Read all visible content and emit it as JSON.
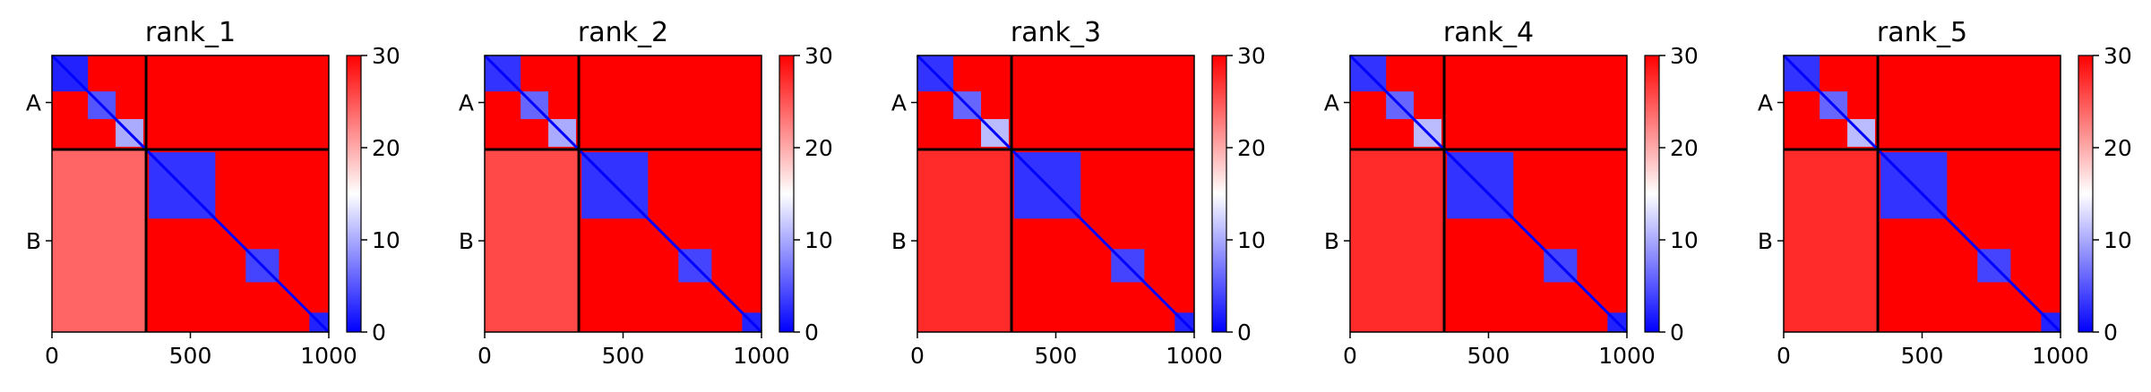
{
  "chart_data": [
    {
      "type": "heatmap",
      "title": "rank_1",
      "xlim": [
        0,
        1000
      ],
      "x_ticks": [
        0,
        500,
        1000
      ],
      "chains": [
        {
          "label": "A",
          "start": 0,
          "end": 340
        },
        {
          "label": "B",
          "start": 340,
          "end": 1000
        }
      ],
      "colorbar": {
        "min": 0,
        "max": 30,
        "ticks": [
          0,
          10,
          20,
          30
        ],
        "colors": [
          "#0000ff",
          "#ffffff",
          "#ff0000"
        ]
      },
      "low_error_blocks": [
        [
          0,
          130,
          2
        ],
        [
          130,
          230,
          5
        ],
        [
          230,
          330,
          10
        ],
        [
          350,
          590,
          3
        ],
        [
          700,
          820,
          4
        ],
        [
          930,
          1000,
          2
        ]
      ],
      "inter_chain_error": 23,
      "background_error": 30
    },
    {
      "type": "heatmap",
      "title": "rank_2",
      "xlim": [
        0,
        1000
      ],
      "x_ticks": [
        0,
        500,
        1000
      ],
      "chains": [
        {
          "label": "A",
          "start": 0,
          "end": 340
        },
        {
          "label": "B",
          "start": 340,
          "end": 1000
        }
      ],
      "colorbar": {
        "min": 0,
        "max": 30,
        "ticks": [
          0,
          10,
          20,
          30
        ],
        "colors": [
          "#0000ff",
          "#ffffff",
          "#ff0000"
        ]
      },
      "low_error_blocks": [
        [
          0,
          130,
          3
        ],
        [
          130,
          230,
          6
        ],
        [
          230,
          330,
          10
        ],
        [
          350,
          590,
          3
        ],
        [
          700,
          820,
          4
        ],
        [
          930,
          1000,
          2
        ]
      ],
      "inter_chain_error": 25,
      "background_error": 30
    },
    {
      "type": "heatmap",
      "title": "rank_3",
      "xlim": [
        0,
        1000
      ],
      "x_ticks": [
        0,
        500,
        1000
      ],
      "chains": [
        {
          "label": "A",
          "start": 0,
          "end": 340
        },
        {
          "label": "B",
          "start": 340,
          "end": 1000
        }
      ],
      "colorbar": {
        "min": 0,
        "max": 30,
        "ticks": [
          0,
          10,
          20,
          30
        ],
        "colors": [
          "#0000ff",
          "#ffffff",
          "#ff0000"
        ]
      },
      "low_error_blocks": [
        [
          0,
          130,
          3
        ],
        [
          130,
          230,
          6
        ],
        [
          230,
          330,
          11
        ],
        [
          350,
          590,
          3
        ],
        [
          700,
          820,
          4
        ],
        [
          930,
          1000,
          2
        ]
      ],
      "inter_chain_error": 27,
      "background_error": 30
    },
    {
      "type": "heatmap",
      "title": "rank_4",
      "xlim": [
        0,
        1000
      ],
      "x_ticks": [
        0,
        500,
        1000
      ],
      "chains": [
        {
          "label": "A",
          "start": 0,
          "end": 340
        },
        {
          "label": "B",
          "start": 340,
          "end": 1000
        }
      ],
      "colorbar": {
        "min": 0,
        "max": 30,
        "ticks": [
          0,
          10,
          20,
          30
        ],
        "colors": [
          "#0000ff",
          "#ffffff",
          "#ff0000"
        ]
      },
      "low_error_blocks": [
        [
          0,
          130,
          3
        ],
        [
          130,
          230,
          6
        ],
        [
          230,
          330,
          11
        ],
        [
          350,
          590,
          3
        ],
        [
          700,
          820,
          4
        ],
        [
          930,
          1000,
          2
        ]
      ],
      "inter_chain_error": 27,
      "background_error": 30
    },
    {
      "type": "heatmap",
      "title": "rank_5",
      "xlim": [
        0,
        1000
      ],
      "x_ticks": [
        0,
        500,
        1000
      ],
      "chains": [
        {
          "label": "A",
          "start": 0,
          "end": 340
        },
        {
          "label": "B",
          "start": 340,
          "end": 1000
        }
      ],
      "colorbar": {
        "min": 0,
        "max": 30,
        "ticks": [
          0,
          10,
          20,
          30
        ],
        "colors": [
          "#0000ff",
          "#ffffff",
          "#ff0000"
        ]
      },
      "low_error_blocks": [
        [
          0,
          130,
          3
        ],
        [
          130,
          230,
          6
        ],
        [
          230,
          330,
          11
        ],
        [
          350,
          590,
          3
        ],
        [
          700,
          820,
          4
        ],
        [
          930,
          1000,
          2
        ]
      ],
      "inter_chain_error": 27,
      "background_error": 30
    }
  ]
}
